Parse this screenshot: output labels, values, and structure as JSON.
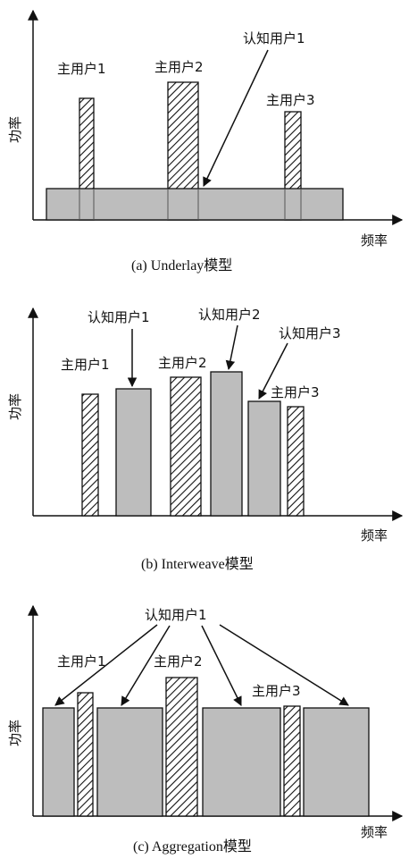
{
  "colors": {
    "cognitive_fill": "#bdbdbd",
    "stroke": "#111111",
    "hatch": "#111111"
  },
  "panel_a": {
    "caption": "(a) Underlay模型",
    "y_axis": "功率",
    "x_axis": "频率",
    "primary_1": "主用户1",
    "primary_2": "主用户2",
    "primary_3": "主用户3",
    "cognitive_1": "认知用户1"
  },
  "panel_b": {
    "caption": "(b) Interweave模型",
    "y_axis": "功率",
    "x_axis": "频率",
    "primary_1": "主用户1",
    "primary_2": "主用户2",
    "primary_3": "主用户3",
    "cognitive_1": "认知用户1",
    "cognitive_2": "认知用户2",
    "cognitive_3": "认知用户3"
  },
  "panel_c": {
    "caption": "(c) Aggregation模型",
    "y_axis": "功率",
    "x_axis": "频率",
    "primary_1": "主用户1",
    "primary_2": "主用户2",
    "primary_3": "主用户3",
    "cognitive_1": "认知用户1"
  }
}
